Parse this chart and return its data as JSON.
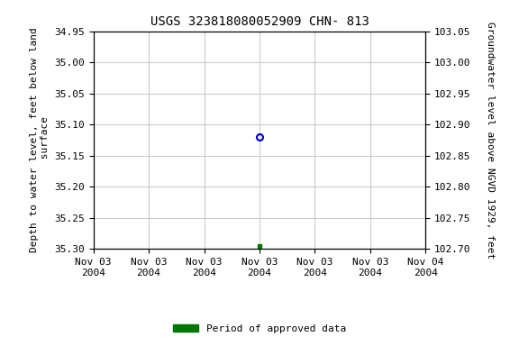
{
  "title": "USGS 323818080052909 CHN- 813",
  "ylabel_left": "Depth to water level, feet below land\n surface",
  "ylabel_right": "Groundwater level above NGVD 1929, feet",
  "ylim_left": [
    34.95,
    35.3
  ],
  "ylim_right": [
    102.7,
    103.05
  ],
  "yticks_left": [
    34.95,
    35.0,
    35.05,
    35.1,
    35.15,
    35.2,
    35.25,
    35.3
  ],
  "yticks_right": [
    102.7,
    102.75,
    102.8,
    102.85,
    102.9,
    102.95,
    103.0,
    103.05
  ],
  "point_blue": {
    "date": "2004-11-03 12:00:00",
    "value": 35.12
  },
  "point_green": {
    "date": "2004-11-03 12:00:00",
    "value": 35.295
  },
  "x_start": "2004-11-03 00:00:00",
  "x_end": "2004-11-04 00:00:00",
  "xtick_dates": [
    "2004-11-03 00:00:00",
    "2004-11-03 04:00:00",
    "2004-11-03 08:00:00",
    "2004-11-03 12:00:00",
    "2004-11-03 16:00:00",
    "2004-11-03 20:00:00",
    "2004-11-04 00:00:00"
  ],
  "xtick_labels": [
    "Nov 03\n2004",
    "Nov 03\n2004",
    "Nov 03\n2004",
    "Nov 03\n2004",
    "Nov 03\n2004",
    "Nov 03\n2004",
    "Nov 04\n2004"
  ],
  "color_blue": "#0000cc",
  "color_green": "#007700",
  "background": "#ffffff",
  "grid_color": "#cccccc",
  "legend_label": "Period of approved data",
  "font_family": "monospace",
  "title_fontsize": 10,
  "label_fontsize": 8,
  "tick_fontsize": 8
}
